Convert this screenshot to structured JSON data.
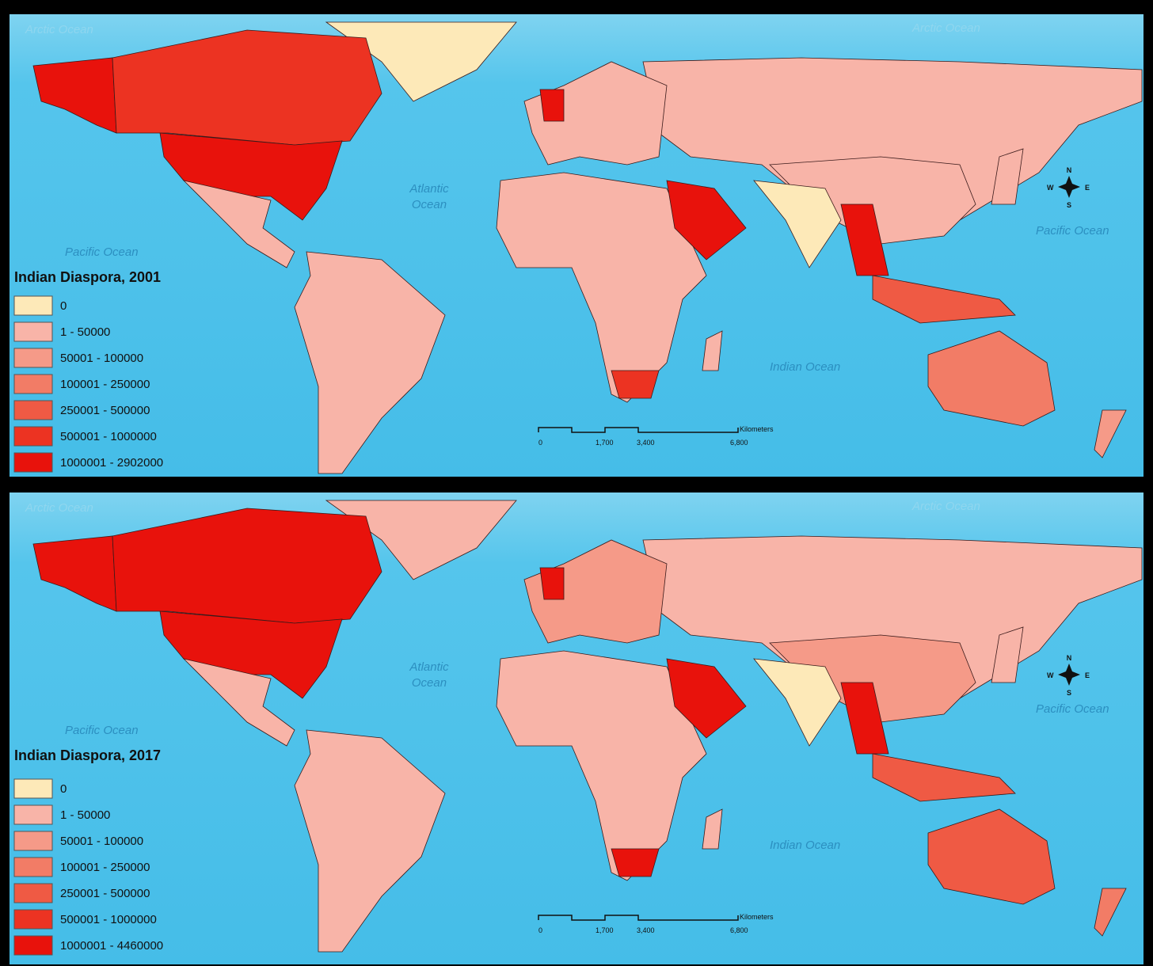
{
  "maps": [
    {
      "title": "Indian Diaspora, 2001",
      "legend": [
        {
          "label": "0",
          "color": "#fde9b8"
        },
        {
          "label": "1 - 50000",
          "color": "#f8b4a8"
        },
        {
          "label": "50001 - 100000",
          "color": "#f59a88"
        },
        {
          "label": "100001 - 250000",
          "color": "#f27c66"
        },
        {
          "label": "250001 - 500000",
          "color": "#ef5a44"
        },
        {
          "label": "500001 - 1000000",
          "color": "#ec3322"
        },
        {
          "label": "1000001 - 2902000",
          "color": "#e8120c"
        }
      ],
      "ocean_labels": {
        "arctic_west": "Arctic Ocean",
        "arctic_east": "Arctic Ocean",
        "atlantic": [
          "Atlantic",
          "Ocean"
        ],
        "pacific_west": "Pacific Ocean",
        "pacific_east": "Pacific Ocean",
        "indian": "Indian Ocean"
      },
      "scale_bar": {
        "unit": "Kilometers",
        "ticks": [
          "0",
          "1,700",
          "3,400",
          "6,800"
        ]
      },
      "compass": {
        "n": "N",
        "s": "S",
        "e": "E",
        "w": "W"
      }
    },
    {
      "title": "Indian Diaspora, 2017",
      "legend": [
        {
          "label": "0",
          "color": "#fde9b8"
        },
        {
          "label": "1 - 50000",
          "color": "#f8b4a8"
        },
        {
          "label": "50001 - 100000",
          "color": "#f59a88"
        },
        {
          "label": "100001 - 250000",
          "color": "#f27c66"
        },
        {
          "label": "250001 - 500000",
          "color": "#ef5a44"
        },
        {
          "label": "500001 - 1000000",
          "color": "#ec3322"
        },
        {
          "label": "1000001 - 4460000",
          "color": "#e8120c"
        }
      ],
      "ocean_labels": {
        "arctic_west": "Arctic Ocean",
        "arctic_east": "Arctic Ocean",
        "atlantic": [
          "Atlantic",
          "Ocean"
        ],
        "pacific_west": "Pacific Ocean",
        "pacific_east": "Pacific Ocean",
        "indian": "Indian Ocean"
      },
      "scale_bar": {
        "unit": "Kilometers",
        "ticks": [
          "0",
          "1,700",
          "3,400",
          "6,800"
        ]
      },
      "compass": {
        "n": "N",
        "s": "S",
        "e": "E",
        "w": "W"
      }
    }
  ]
}
